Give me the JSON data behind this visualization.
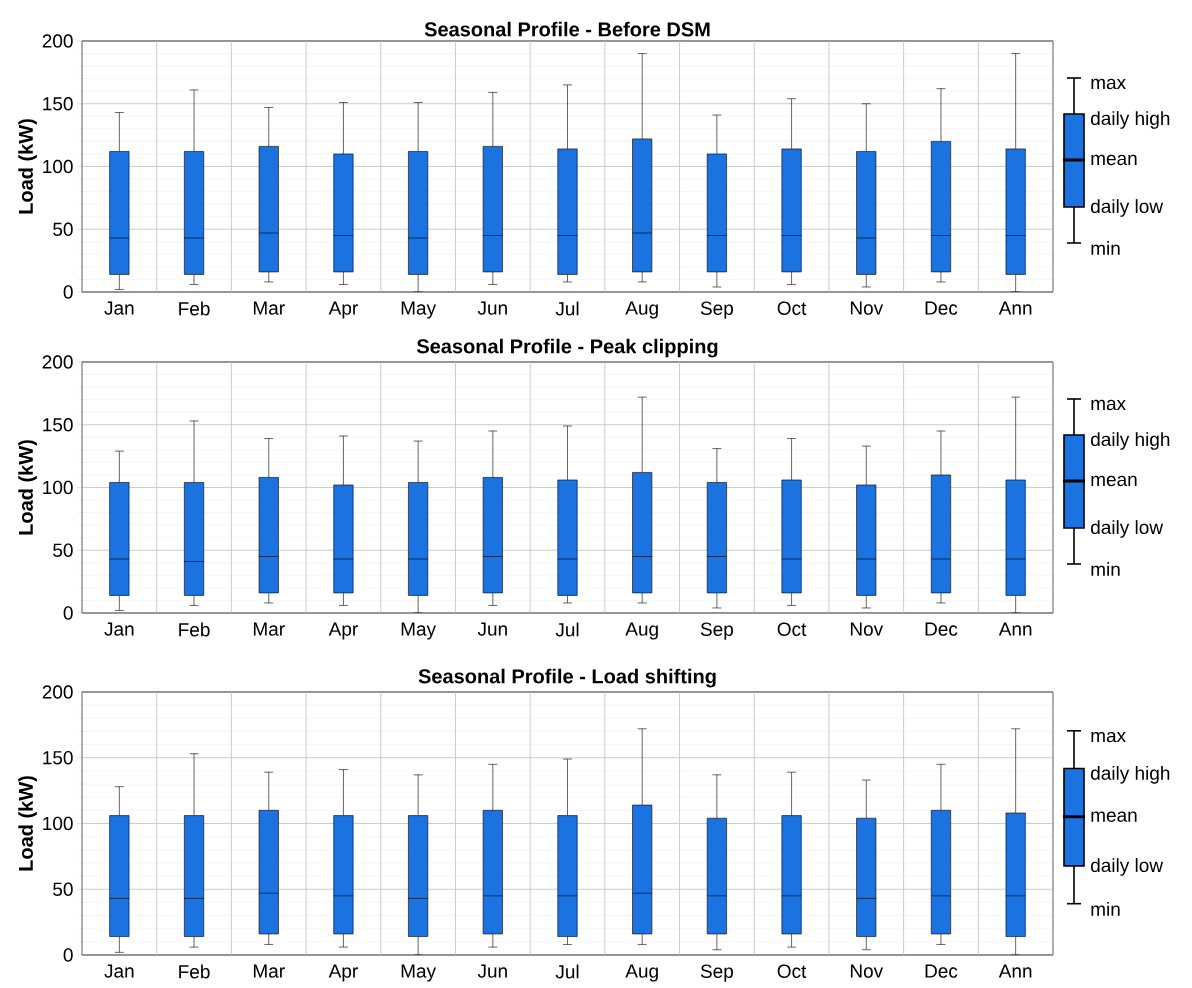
{
  "chart_data": [
    {
      "type": "box",
      "title": "Seasonal Profile - Before DSM",
      "ylabel": "Load (kW)",
      "categories": [
        "Jan",
        "Feb",
        "Mar",
        "Apr",
        "May",
        "Jun",
        "Jul",
        "Aug",
        "Sep",
        "Oct",
        "Nov",
        "Dec",
        "Ann"
      ],
      "color": "#1a73e0",
      "ylim": [
        0,
        200
      ],
      "yticks": [
        0,
        50,
        100,
        150,
        200
      ],
      "grid": true,
      "boxes": [
        {
          "low": 2,
          "q1": 14,
          "mean": 43,
          "q3": 112,
          "high": 143
        },
        {
          "low": 6,
          "q1": 14,
          "mean": 43,
          "q3": 112,
          "high": 161
        },
        {
          "low": 8,
          "q1": 16,
          "mean": 47,
          "q3": 116,
          "high": 147
        },
        {
          "low": 6,
          "q1": 16,
          "mean": 45,
          "q3": 110,
          "high": 151
        },
        {
          "low": 0,
          "q1": 14,
          "mean": 43,
          "q3": 112,
          "high": 151
        },
        {
          "low": 6,
          "q1": 16,
          "mean": 45,
          "q3": 116,
          "high": 159
        },
        {
          "low": 8,
          "q1": 14,
          "mean": 45,
          "q3": 114,
          "high": 165
        },
        {
          "low": 8,
          "q1": 16,
          "mean": 47,
          "q3": 122,
          "high": 190
        },
        {
          "low": 4,
          "q1": 16,
          "mean": 45,
          "q3": 110,
          "high": 141
        },
        {
          "low": 6,
          "q1": 16,
          "mean": 45,
          "q3": 114,
          "high": 154
        },
        {
          "low": 4,
          "q1": 14,
          "mean": 43,
          "q3": 112,
          "high": 150
        },
        {
          "low": 8,
          "q1": 16,
          "mean": 45,
          "q3": 120,
          "high": 162
        },
        {
          "low": 0,
          "q1": 14,
          "mean": 45,
          "q3": 114,
          "high": 190
        }
      ],
      "annotations": [
        "max",
        "daily high",
        "mean",
        "daily low",
        "min"
      ]
    },
    {
      "type": "box",
      "title": "Seasonal Profile - Peak clipping",
      "ylabel": "Load (kW)",
      "categories": [
        "Jan",
        "Feb",
        "Mar",
        "Apr",
        "May",
        "Jun",
        "Jul",
        "Aug",
        "Sep",
        "Oct",
        "Nov",
        "Dec",
        "Ann"
      ],
      "color": "#1a73e0",
      "ylim": [
        0,
        200
      ],
      "yticks": [
        0,
        50,
        100,
        150,
        200
      ],
      "grid": true,
      "boxes": [
        {
          "low": 2,
          "q1": 14,
          "mean": 43,
          "q3": 104,
          "high": 129
        },
        {
          "low": 6,
          "q1": 14,
          "mean": 41,
          "q3": 104,
          "high": 153
        },
        {
          "low": 8,
          "q1": 16,
          "mean": 45,
          "q3": 108,
          "high": 139
        },
        {
          "low": 6,
          "q1": 16,
          "mean": 43,
          "q3": 102,
          "high": 141
        },
        {
          "low": 0,
          "q1": 14,
          "mean": 43,
          "q3": 104,
          "high": 137
        },
        {
          "low": 6,
          "q1": 16,
          "mean": 45,
          "q3": 108,
          "high": 145
        },
        {
          "low": 8,
          "q1": 14,
          "mean": 43,
          "q3": 106,
          "high": 149
        },
        {
          "low": 8,
          "q1": 16,
          "mean": 45,
          "q3": 112,
          "high": 172
        },
        {
          "low": 4,
          "q1": 16,
          "mean": 45,
          "q3": 104,
          "high": 131
        },
        {
          "low": 6,
          "q1": 16,
          "mean": 43,
          "q3": 106,
          "high": 139
        },
        {
          "low": 4,
          "q1": 14,
          "mean": 43,
          "q3": 102,
          "high": 133
        },
        {
          "low": 8,
          "q1": 16,
          "mean": 43,
          "q3": 110,
          "high": 145
        },
        {
          "low": 0,
          "q1": 14,
          "mean": 43,
          "q3": 106,
          "high": 172
        }
      ],
      "annotations": [
        "max",
        "daily high",
        "mean",
        "daily low",
        "min"
      ]
    },
    {
      "type": "box",
      "title": "Seasonal Profile - Load shifting",
      "ylabel": "Load (kW)",
      "categories": [
        "Jan",
        "Feb",
        "Mar",
        "Apr",
        "May",
        "Jun",
        "Jul",
        "Aug",
        "Sep",
        "Oct",
        "Nov",
        "Dec",
        "Ann"
      ],
      "color": "#1a73e0",
      "ylim": [
        0,
        200
      ],
      "yticks": [
        0,
        50,
        100,
        150,
        200
      ],
      "grid": true,
      "boxes": [
        {
          "low": 2,
          "q1": 14,
          "mean": 43,
          "q3": 106,
          "high": 128
        },
        {
          "low": 6,
          "q1": 14,
          "mean": 43,
          "q3": 106,
          "high": 153
        },
        {
          "low": 8,
          "q1": 16,
          "mean": 47,
          "q3": 110,
          "high": 139
        },
        {
          "low": 6,
          "q1": 16,
          "mean": 45,
          "q3": 106,
          "high": 141
        },
        {
          "low": 0,
          "q1": 14,
          "mean": 43,
          "q3": 106,
          "high": 137
        },
        {
          "low": 6,
          "q1": 16,
          "mean": 45,
          "q3": 110,
          "high": 145
        },
        {
          "low": 8,
          "q1": 14,
          "mean": 45,
          "q3": 106,
          "high": 149
        },
        {
          "low": 8,
          "q1": 16,
          "mean": 47,
          "q3": 114,
          "high": 172
        },
        {
          "low": 4,
          "q1": 16,
          "mean": 45,
          "q3": 104,
          "high": 137
        },
        {
          "low": 6,
          "q1": 16,
          "mean": 45,
          "q3": 106,
          "high": 139
        },
        {
          "low": 4,
          "q1": 14,
          "mean": 43,
          "q3": 104,
          "high": 133
        },
        {
          "low": 8,
          "q1": 16,
          "mean": 45,
          "q3": 110,
          "high": 145
        },
        {
          "low": 0,
          "q1": 14,
          "mean": 45,
          "q3": 108,
          "high": 172
        }
      ],
      "annotations": [
        "max",
        "daily high",
        "mean",
        "daily low",
        "min"
      ]
    }
  ]
}
